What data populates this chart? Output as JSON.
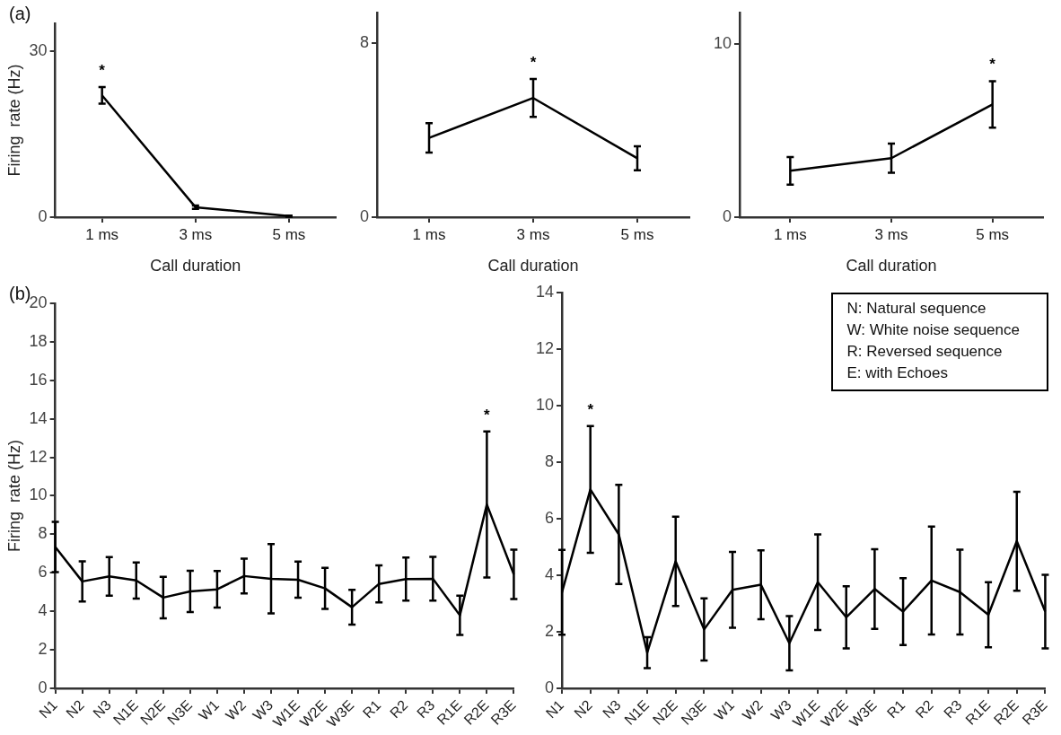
{
  "chart_data": [
    {
      "type": "line",
      "title": "(a)",
      "ylabel": "Firing  rate (Hz)",
      "xlabel": "Call duration",
      "categories": [
        "1 ms",
        "3 ms",
        "5 ms"
      ],
      "values": [
        22,
        1.8,
        0.2
      ],
      "errors": [
        1.5,
        0.3,
        0.1
      ],
      "color": "#000000",
      "ylim": [
        0,
        35
      ],
      "yticks": [
        0,
        30
      ],
      "grid": false,
      "marker": "none",
      "annotations": [
        "*"
      ]
    },
    {
      "type": "line",
      "xlabel": "Call duration",
      "categories": [
        "1 ms",
        "3 ms",
        "5 ms"
      ],
      "values": [
        3.64,
        5.47,
        2.7
      ],
      "errors": [
        0.67,
        0.87,
        0.55
      ],
      "color": "#000000",
      "ylim": [
        0,
        9.4
      ],
      "yticks": [
        0,
        8
      ],
      "grid": false,
      "marker": "none",
      "annotations": [
        "*"
      ]
    },
    {
      "type": "line",
      "xlabel": "Call duration",
      "categories": [
        "1 ms",
        "3 ms",
        "5 ms"
      ],
      "values": [
        2.67,
        3.4,
        6.5
      ],
      "errors": [
        0.8,
        0.84,
        1.34
      ],
      "color": "#000000",
      "ylim": [
        0,
        11.8
      ],
      "yticks": [
        0,
        10
      ],
      "grid": false,
      "marker": "none",
      "annotations": [
        "*"
      ]
    },
    {
      "type": "line",
      "title": "(b)",
      "ylabel": "Firing  rate (Hz)",
      "categories": [
        "N1",
        "N2",
        "N3",
        "N1E",
        "N2E",
        "N3E",
        "W1",
        "W2",
        "W3",
        "W1E",
        "W2E",
        "W3E",
        "R1",
        "R2",
        "R3",
        "R1E",
        "R2E",
        "R3E"
      ],
      "values": [
        7.34,
        5.55,
        5.81,
        5.6,
        4.71,
        5.03,
        5.14,
        5.83,
        5.69,
        5.64,
        5.19,
        4.21,
        5.42,
        5.67,
        5.69,
        3.79,
        9.55,
        5.92
      ],
      "errors": [
        1.3,
        1.04,
        1.0,
        0.94,
        1.08,
        1.07,
        0.95,
        0.9,
        1.8,
        0.94,
        1.07,
        0.9,
        0.96,
        1.12,
        1.14,
        1.02,
        3.79,
        1.28
      ],
      "color": "#000000",
      "ylim": [
        0,
        20
      ],
      "yticks": [
        0,
        2,
        4,
        6,
        8,
        10,
        12,
        14,
        16,
        18,
        20
      ],
      "grid": false,
      "marker": "none",
      "annotations": [
        "*"
      ]
    },
    {
      "type": "line",
      "categories": [
        "N1",
        "N2",
        "N3",
        "N1E",
        "N2E",
        "N3E",
        "W1",
        "W2",
        "W3",
        "W1E",
        "W2E",
        "W3E",
        "R1",
        "R2",
        "R3",
        "R1E",
        "R2E",
        "R3E"
      ],
      "values": [
        3.39,
        7.03,
        5.44,
        1.26,
        4.49,
        2.08,
        3.48,
        3.66,
        1.59,
        3.75,
        2.51,
        3.51,
        2.71,
        3.81,
        3.4,
        2.6,
        5.2,
        2.71
      ],
      "errors": [
        1.5,
        2.24,
        1.75,
        0.55,
        1.58,
        1.1,
        1.34,
        1.22,
        0.96,
        1.69,
        1.1,
        1.41,
        1.18,
        1.91,
        1.5,
        1.15,
        1.75,
        1.3
      ],
      "color": "#000000",
      "ylim": [
        0,
        14
      ],
      "yticks": [
        0,
        2,
        4,
        6,
        8,
        10,
        12,
        14
      ],
      "grid": false,
      "marker": "none",
      "annotations": [
        "*",
        "N: Natural sequence",
        "W: White noise sequence",
        "R: Reversed sequence",
        "E: with Echoes"
      ]
    }
  ]
}
